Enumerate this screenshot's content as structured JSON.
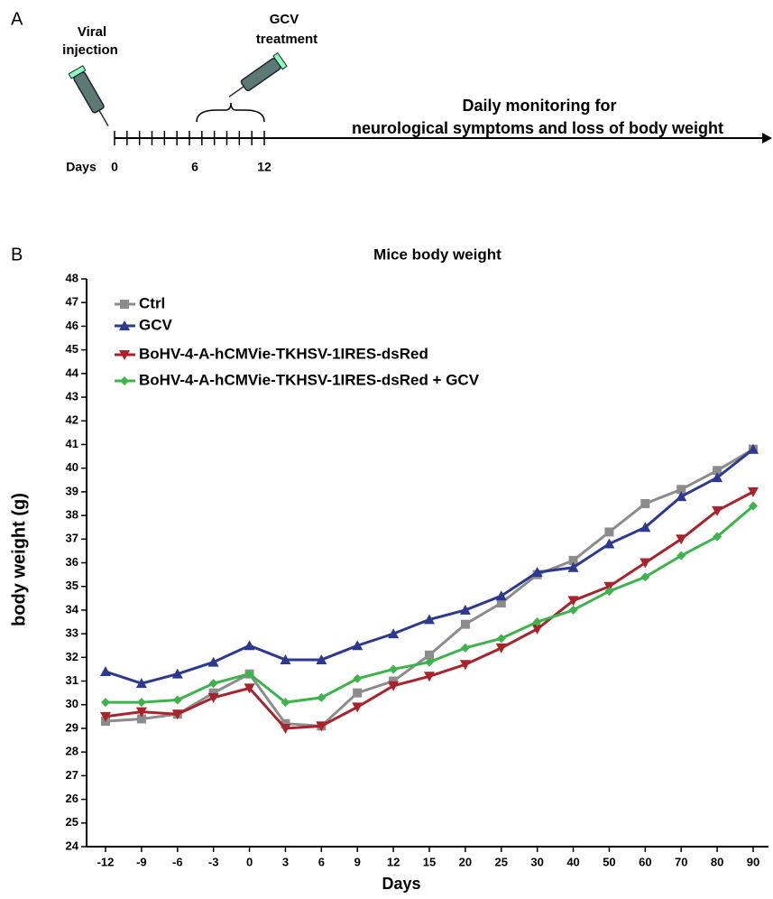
{
  "panel_a": {
    "label": "A",
    "injection_label": [
      "Viral",
      "injection"
    ],
    "treatment_label": [
      "GCV",
      "treatment"
    ],
    "monitoring_label": [
      "Daily monitoring for",
      "neurological symptoms and loss of body weight"
    ],
    "days_label": "Days",
    "day_ticks": [
      "0",
      "6",
      "12"
    ]
  },
  "panel_b": {
    "label": "B"
  },
  "chart_data": {
    "type": "line",
    "title": "Mice body weight",
    "x_label": "Days",
    "y_label": "body weight (g)",
    "categories": [
      "-12",
      "-9",
      "-6",
      "-3",
      "0",
      "3",
      "6",
      "9",
      "12",
      "15",
      "20",
      "25",
      "30",
      "40",
      "50",
      "60",
      "70",
      "80",
      "90"
    ],
    "ylim": [
      24,
      48
    ],
    "yticks": [
      24,
      25,
      26,
      27,
      28,
      29,
      30,
      31,
      32,
      33,
      34,
      35,
      36,
      37,
      38,
      39,
      40,
      41,
      42,
      43,
      44,
      45,
      46,
      47,
      48
    ],
    "grid": false,
    "legend": "top-left",
    "series": [
      {
        "name": "Ctrl",
        "color": "#8c8c8c",
        "marker": "square",
        "values": [
          29.3,
          29.4,
          29.6,
          30.5,
          31.3,
          29.2,
          29.1,
          30.5,
          31.0,
          32.1,
          33.4,
          34.3,
          35.5,
          36.1,
          37.3,
          38.5,
          39.1,
          39.9,
          40.8
        ]
      },
      {
        "name": "GCV",
        "color": "#2b3990",
        "marker": "triangle-up",
        "values": [
          31.4,
          30.9,
          31.3,
          31.8,
          32.5,
          31.9,
          31.9,
          32.5,
          33.0,
          33.6,
          34.0,
          34.6,
          35.6,
          35.8,
          36.8,
          37.5,
          38.8,
          39.6,
          40.8
        ]
      },
      {
        "name": "BoHV-4-A-hCMVie-TKHSV-1IRES-dsRed",
        "color": "#a8232b",
        "marker": "triangle-down",
        "values": [
          29.5,
          29.7,
          29.6,
          30.3,
          30.7,
          29.0,
          29.1,
          29.9,
          30.8,
          31.2,
          31.7,
          32.4,
          33.2,
          34.4,
          35.0,
          36.0,
          37.0,
          38.2,
          39.0
        ]
      },
      {
        "name": "BoHV-4-A-hCMVie-TKHSV-1IRES-dsRed + GCV",
        "color": "#3cb44b",
        "marker": "diamond",
        "values": [
          30.1,
          30.1,
          30.2,
          30.9,
          31.3,
          30.1,
          30.3,
          31.1,
          31.5,
          31.8,
          32.4,
          32.8,
          33.5,
          34.0,
          34.8,
          35.4,
          36.3,
          37.1,
          38.4
        ]
      }
    ]
  }
}
